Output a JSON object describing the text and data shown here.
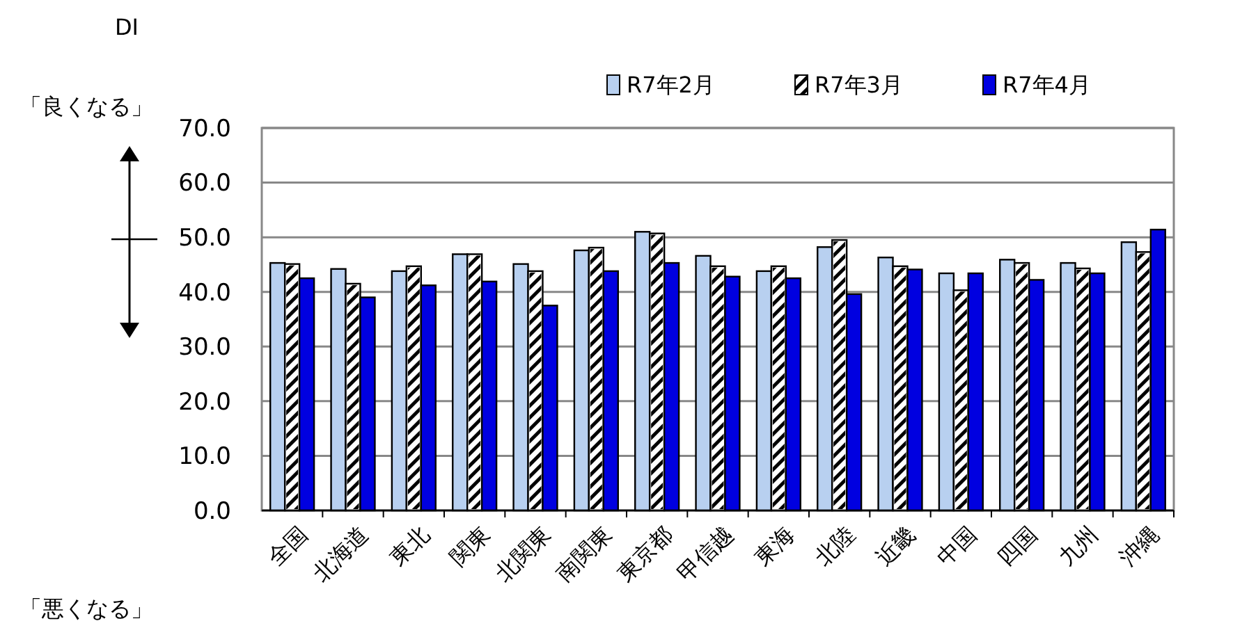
{
  "chart_data": {
    "type": "bar",
    "ylabel": "DI",
    "annotations": [
      "「良くなる」",
      "「悪くなる」"
    ],
    "categories": [
      "全国",
      "北海道",
      "東北",
      "関東",
      "北関東",
      "南関東",
      "東京都",
      "甲信越",
      "東海",
      "北陸",
      "近畿",
      "中国",
      "四国",
      "九州",
      "沖縄"
    ],
    "series": [
      {
        "name": "R7年2月",
        "color": "#b8d0f0",
        "values": [
          45.3,
          44.2,
          43.8,
          46.9,
          45.1,
          47.6,
          51.0,
          46.6,
          43.8,
          48.2,
          46.3,
          43.4,
          45.9,
          45.3,
          49.1
        ]
      },
      {
        "name": "R7年3月",
        "color": "#ffffff",
        "values": [
          45.1,
          41.5,
          44.7,
          46.9,
          43.8,
          48.1,
          50.7,
          44.7,
          44.7,
          49.5,
          44.7,
          40.3,
          45.3,
          44.3,
          47.3
        ]
      },
      {
        "name": "R7年4月",
        "color": "#0000e0",
        "values": [
          42.5,
          39.0,
          41.2,
          41.9,
          37.5,
          43.8,
          45.3,
          42.8,
          42.5,
          39.6,
          44.1,
          43.4,
          42.2,
          43.4,
          51.4
        ]
      }
    ],
    "ylim": [
      0,
      70
    ],
    "yticks": [
      {
        "value": 0,
        "label": "0.0"
      },
      {
        "value": 10,
        "label": "10.0"
      },
      {
        "value": 20,
        "label": "20.0"
      },
      {
        "value": 30,
        "label": "30.0"
      },
      {
        "value": 40,
        "label": "40.0"
      },
      {
        "value": 50,
        "label": "50.0"
      },
      {
        "value": 60,
        "label": "60.0"
      },
      {
        "value": 70,
        "label": "70.0"
      }
    ],
    "grid": "y",
    "legend": "top right"
  }
}
